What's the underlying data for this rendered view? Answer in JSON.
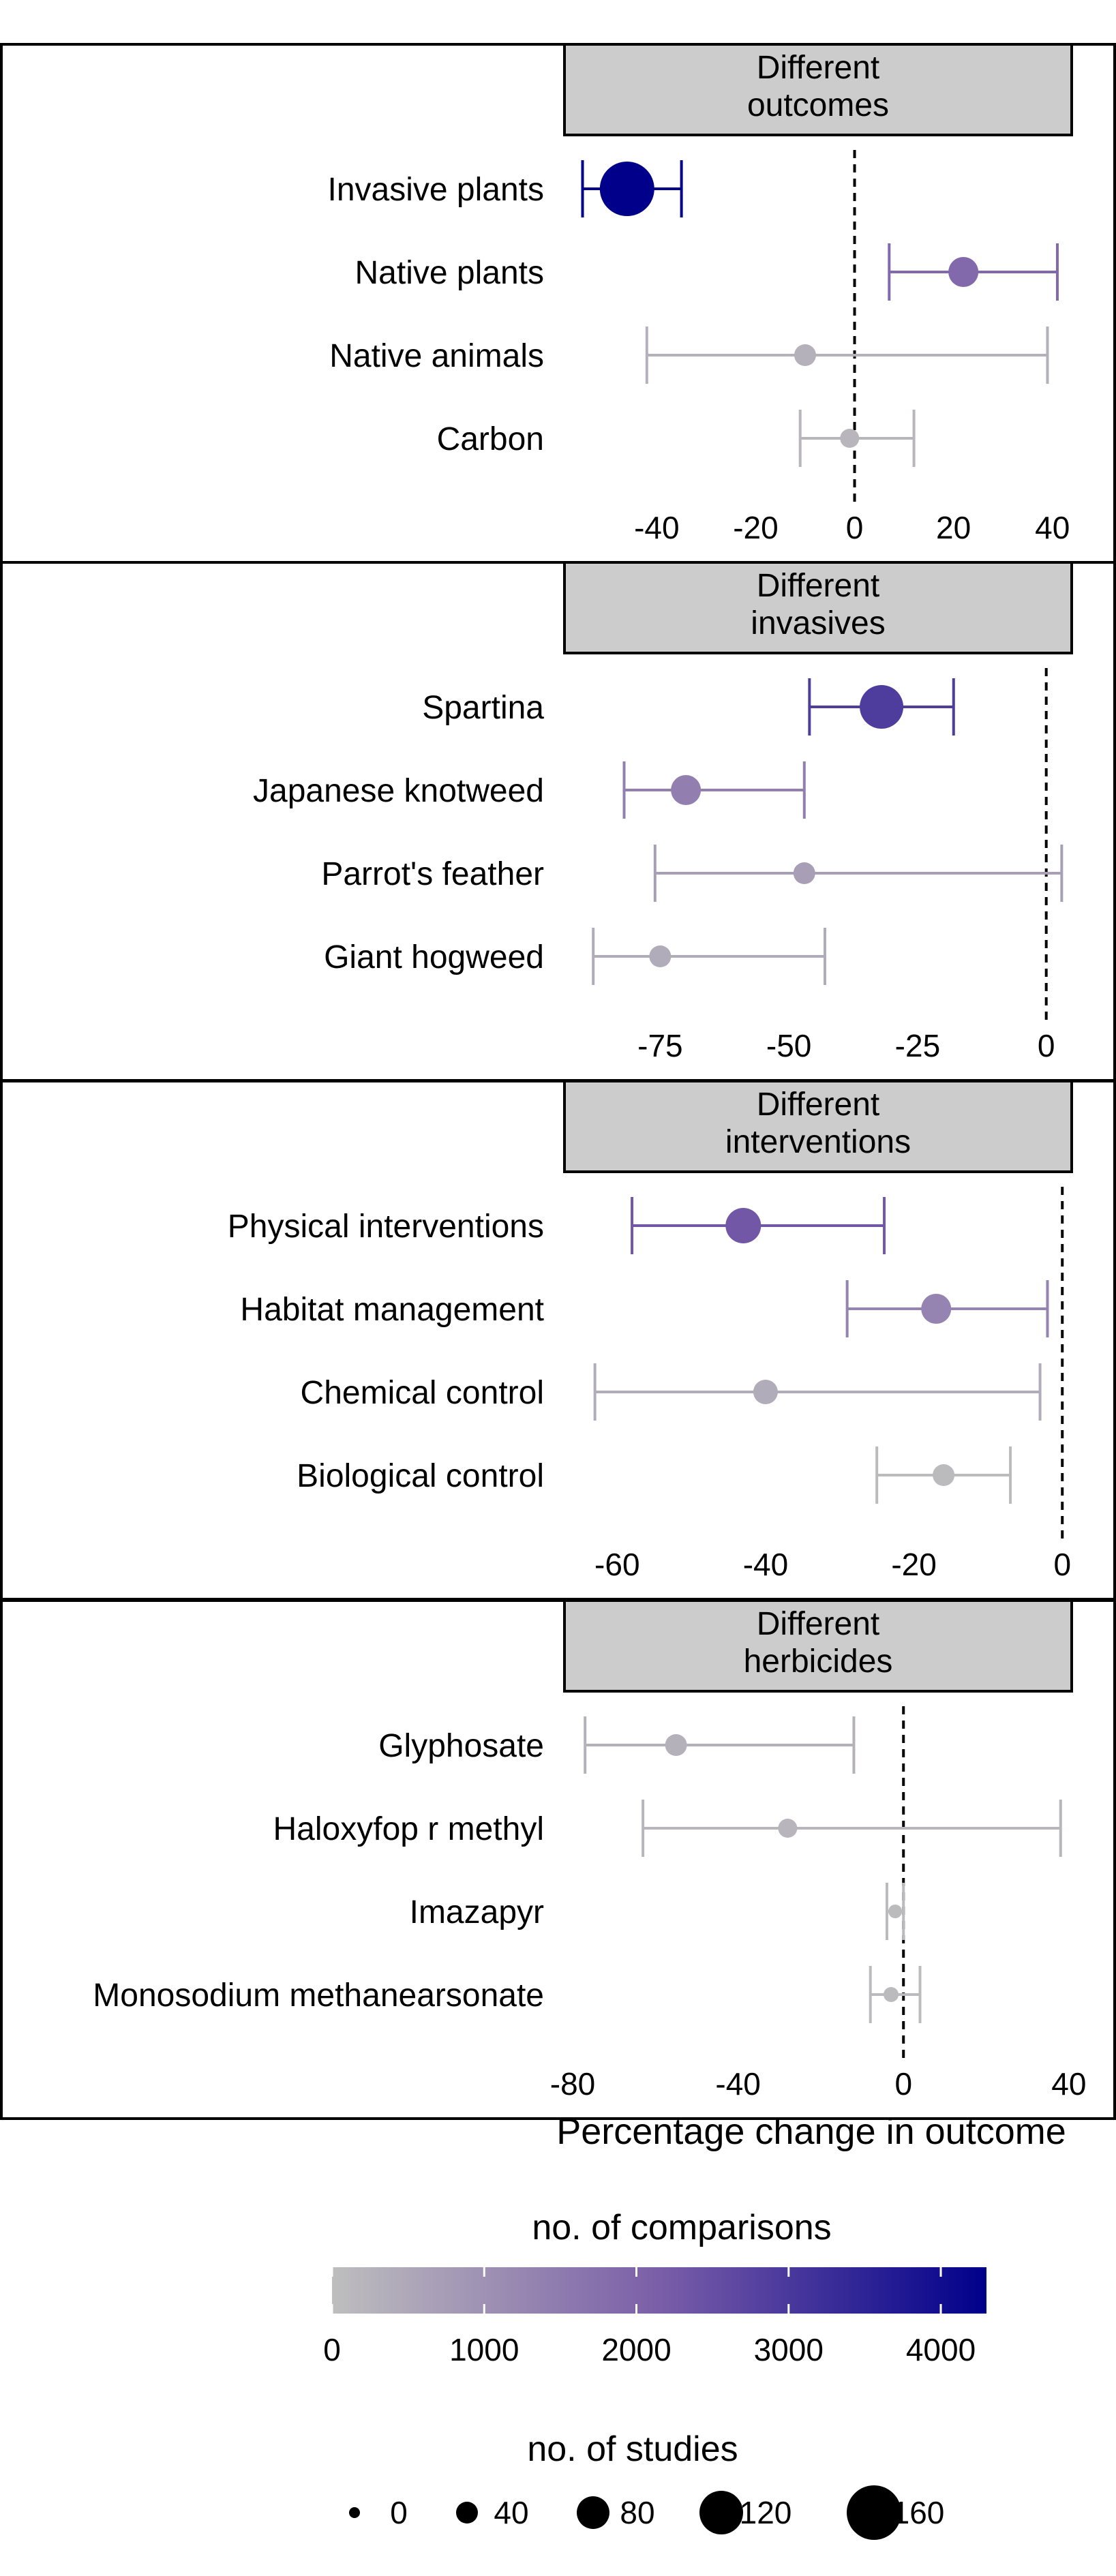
{
  "chart_data": [
    {
      "type": "forest",
      "facet_title": [
        "Different",
        "outcomes"
      ],
      "categories": [
        "Invasive plants",
        "Native plants",
        "Native animals",
        "Carbon"
      ],
      "estimate": [
        -46,
        22,
        -10,
        -1
      ],
      "ci_low": [
        -55,
        7,
        -42,
        -11
      ],
      "ci_high": [
        -35,
        41,
        39,
        12
      ],
      "comparisons": [
        4300,
        1900,
        300,
        200
      ],
      "studies": [
        160,
        70,
        40,
        30
      ],
      "xlim": [
        -57,
        45
      ],
      "xticks": [
        -40,
        -20,
        0,
        20,
        40
      ],
      "reference_line": 0
    },
    {
      "type": "forest",
      "facet_title": [
        "Different",
        "invasives"
      ],
      "categories": [
        "Spartina",
        "Japanese knotweed",
        "Parrot's feather",
        "Giant hogweed"
      ],
      "estimate": [
        -32,
        -70,
        -47,
        -75
      ],
      "ci_low": [
        -46,
        -82,
        -76,
        -88
      ],
      "ci_high": [
        -18,
        -47,
        3,
        -43
      ],
      "comparisons": [
        2900,
        1400,
        700,
        400
      ],
      "studies": [
        120,
        70,
        40,
        40
      ],
      "xlim": [
        -92,
        6
      ],
      "xticks": [
        -75,
        -50,
        -25,
        0
      ],
      "reference_line": 0
    },
    {
      "type": "forest",
      "facet_title": [
        "Different",
        "interventions"
      ],
      "categories": [
        "Physical interventions",
        "Habitat management",
        "Chemical control",
        "Biological control"
      ],
      "estimate": [
        -43,
        -17,
        -40,
        -16
      ],
      "ci_low": [
        -58,
        -29,
        -63,
        -25
      ],
      "ci_high": [
        -24,
        -2,
        -3,
        -7
      ],
      "comparisons": [
        2300,
        1300,
        400,
        100
      ],
      "studies": [
        90,
        70,
        50,
        40
      ],
      "xlim": [
        -66,
        2
      ],
      "xticks": [
        -60,
        -40,
        -20,
        0
      ],
      "reference_line": 0
    },
    {
      "type": "forest",
      "facet_title": [
        "Different",
        "herbicides"
      ],
      "categories": [
        "Glyphosate",
        "Haloxyfop r methyl",
        "Imazapyr",
        "Monosodium methanearsonate"
      ],
      "estimate": [
        -55,
        -28,
        -2,
        -3
      ],
      "ci_low": [
        -77,
        -63,
        -4,
        -8
      ],
      "ci_high": [
        -12,
        38,
        0,
        4
      ],
      "comparisons": [
        300,
        200,
        100,
        100
      ],
      "studies": [
        40,
        30,
        10,
        15
      ],
      "xlim": [
        -80,
        42
      ],
      "xticks": [
        -80,
        -40,
        0,
        40
      ],
      "reference_line": 0
    }
  ],
  "xlabel": "Percentage change in outcome",
  "legend_color": {
    "title": "no. of comparisons",
    "ticks": [
      "0",
      "1000",
      "2000",
      "3000",
      "4000"
    ],
    "tick_values": [
      0,
      1000,
      2000,
      3000,
      4000
    ],
    "domain": [
      0,
      4300
    ],
    "color_low": "#bebebe",
    "color_mid": "#7a5ea8",
    "color_high": "#00008b"
  },
  "legend_size": {
    "title": "no. of studies",
    "labels": [
      "0",
      "40",
      "80",
      "120",
      "160"
    ],
    "values": [
      0,
      40,
      80,
      120,
      160
    ]
  },
  "colors": {
    "strip_fill": "#cccccc",
    "panel_border": "#000000",
    "reference_line": "#000000"
  }
}
